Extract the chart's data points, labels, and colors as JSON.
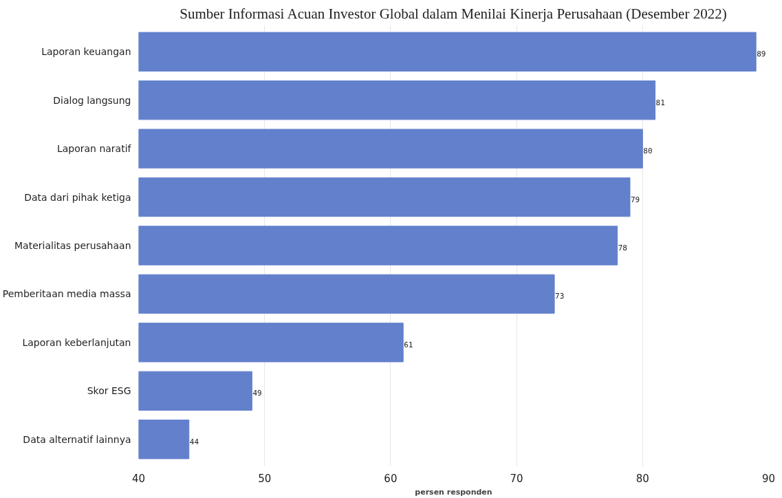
{
  "chart_data": {
    "type": "bar",
    "orientation": "horizontal",
    "title": "Sumber Informasi Acuan Investor Global dalam Menilai Kinerja Perusahaan (Desember 2022)",
    "xlabel": "persen responden",
    "categories": [
      "Laporan keuangan",
      "Dialog langsung",
      "Laporan naratif",
      "Data dari pihak ketiga",
      "Materialitas perusahaan",
      "Pemberitaan media massa",
      "Laporan keberlanjutan",
      "Skor ESG",
      "Data alternatif lainnya"
    ],
    "values": [
      89,
      81,
      80,
      79,
      78,
      73,
      61,
      49,
      44
    ],
    "color": "#6380cc",
    "xlim": [
      40,
      90
    ],
    "xticks": [
      40,
      50,
      60,
      70,
      80,
      90
    ],
    "grid": "x",
    "data_labels": true
  }
}
